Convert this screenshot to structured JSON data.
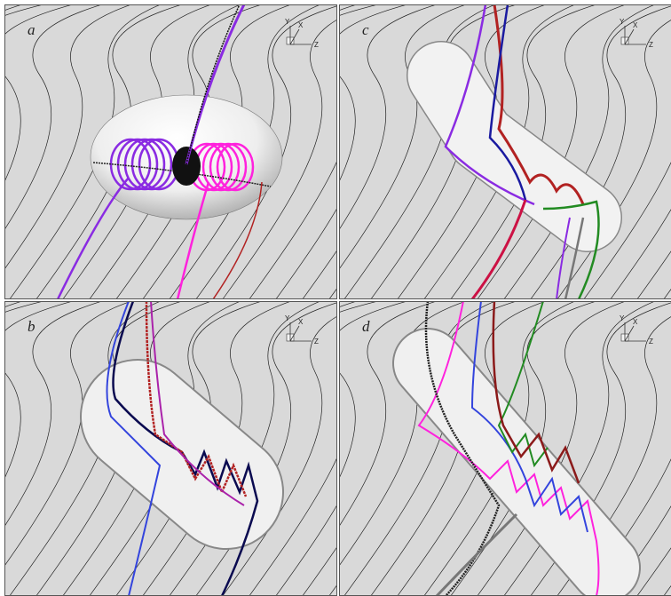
{
  "panels": [
    {
      "label": "a",
      "axes": {
        "y": "Y",
        "x": "X",
        "z": "Z"
      }
    },
    {
      "label": "c",
      "axes": {
        "y": "Y",
        "x": "X",
        "z": "Z"
      }
    },
    {
      "label": "b",
      "axes": {
        "y": "Y",
        "x": "X",
        "z": "Z"
      }
    },
    {
      "label": "d",
      "axes": {
        "y": "Y",
        "x": "X",
        "z": "Z"
      }
    }
  ]
}
